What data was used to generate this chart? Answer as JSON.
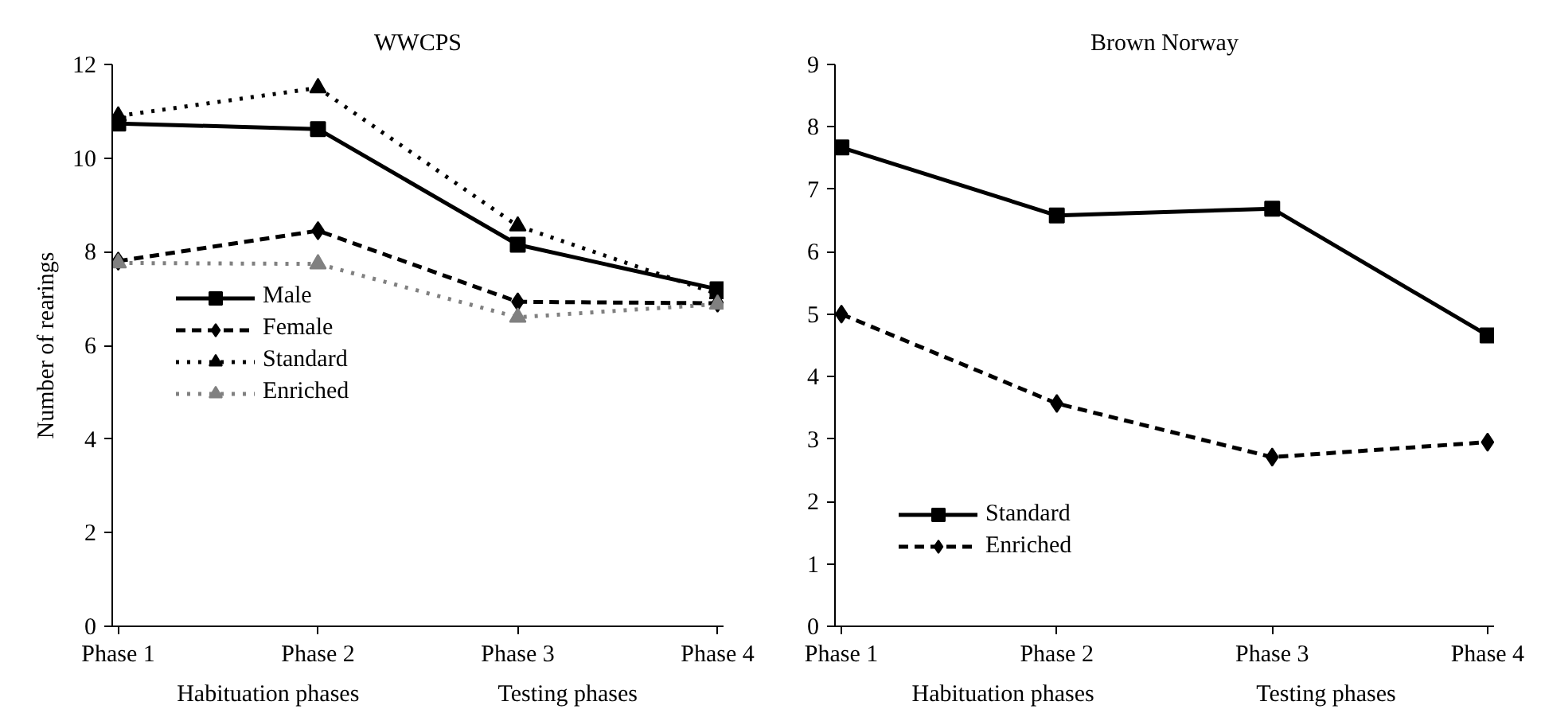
{
  "chart_data": [
    {
      "type": "line",
      "title": "WWCPS",
      "ylabel": "Number of rearings",
      "categories": [
        "Phase 1",
        "Phase 2",
        "Phase 3",
        "Phase 4"
      ],
      "annotations": [
        "Habituation phases",
        "Testing phases"
      ],
      "ylim": [
        0,
        12
      ],
      "yticks": [
        0,
        2,
        4,
        6,
        8,
        10,
        12
      ],
      "legend": "left",
      "grid": false,
      "series": [
        {
          "name": "Male",
          "color": "#000000",
          "values": [
            10.74,
            10.62,
            8.15,
            7.2
          ],
          "marker": "square",
          "line_style": "solid"
        },
        {
          "name": "Female",
          "color": "#000000",
          "values": [
            7.8,
            8.45,
            6.93,
            6.9
          ],
          "marker": "diamond",
          "line_style": "dashed"
        },
        {
          "name": "Standard",
          "color": "#000000",
          "values": [
            10.9,
            11.5,
            8.55,
            7.1
          ],
          "marker": "triangle",
          "line_style": "dotted"
        },
        {
          "name": "Enriched",
          "color": "#808080",
          "values": [
            7.76,
            7.74,
            6.6,
            6.88
          ],
          "marker": "triangle",
          "line_style": "dotted"
        }
      ]
    },
    {
      "type": "line",
      "title": "Brown Norway",
      "categories": [
        "Phase 1",
        "Phase 2",
        "Phase 3",
        "Phase 4"
      ],
      "annotations": [
        "Habituation phases",
        "Testing phases"
      ],
      "ylim": [
        0,
        9
      ],
      "yticks": [
        0,
        1,
        2,
        3,
        4,
        5,
        6,
        7,
        8,
        9
      ],
      "legend": "bottom left",
      "grid": false,
      "series": [
        {
          "name": "Standard",
          "color": "#000000",
          "values": [
            7.67,
            6.58,
            6.69,
            4.66
          ],
          "marker": "square",
          "line_style": "solid"
        },
        {
          "name": "Enriched",
          "color": "#000000",
          "values": [
            5.0,
            3.57,
            2.71,
            2.95
          ],
          "marker": "diamond",
          "line_style": "dashed"
        }
      ]
    }
  ]
}
